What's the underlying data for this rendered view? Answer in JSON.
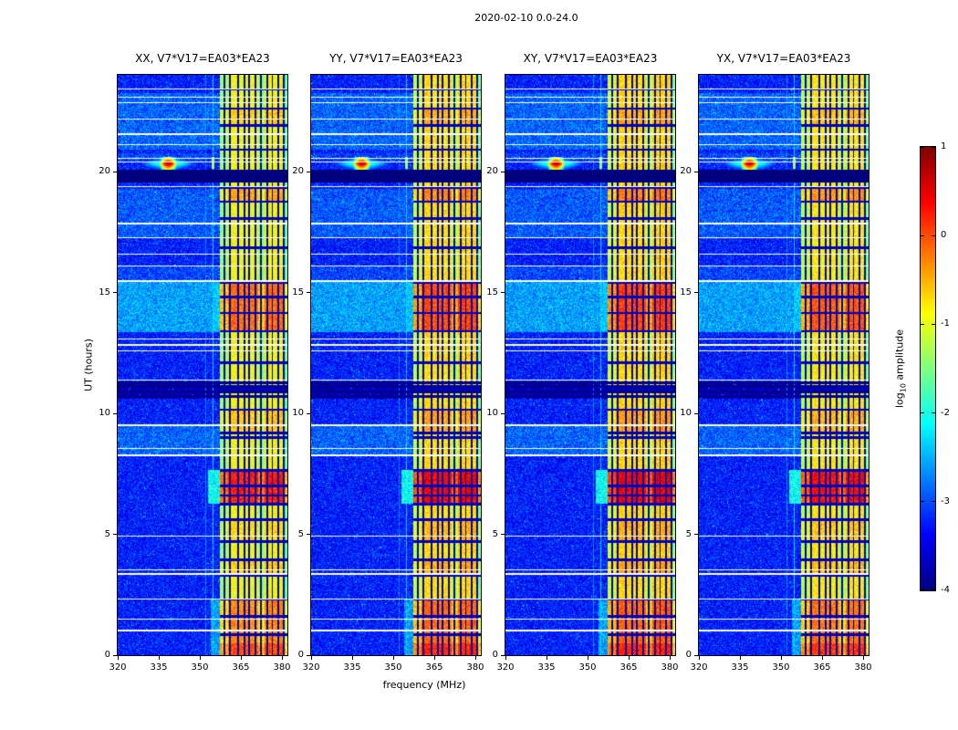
{
  "figure": {
    "title": "2020-02-10 0.0-24.0",
    "xlabel": "frequency (MHz)",
    "ylabel": "UT (hours)",
    "xticks": [
      320,
      335,
      350,
      365,
      380
    ],
    "yticks": [
      0,
      5,
      10,
      15,
      20
    ],
    "panels": [
      {
        "id": "XX",
        "title": "XX, V7*V17=EA03*EA23",
        "seed": 11,
        "band_boost": 0
      },
      {
        "id": "YY",
        "title": "YY, V7*V17=EA03*EA23",
        "seed": 23,
        "band_boost": 0.18
      },
      {
        "id": "XY",
        "title": "XY, V7*V17=EA03*EA23",
        "seed": 37,
        "band_boost": 0.22
      },
      {
        "id": "YX",
        "title": "YX, V7*V17=EA03*EA23",
        "seed": 53,
        "band_boost": 0.1
      }
    ],
    "colorbar": {
      "label_pre": "log",
      "label_sub": "10",
      "label_post": " amplitude",
      "tick_labels": [
        "1",
        "0",
        "-1",
        "-2",
        "-3",
        "-4"
      ],
      "tick_values": [
        1,
        0,
        -1,
        -2,
        -3,
        -4
      ]
    }
  },
  "chart_data": {
    "type": "heatmap",
    "title": "2020-02-10 0.0-24.0",
    "panel_titles": [
      "XX, V7*V17=EA03*EA23",
      "YY, V7*V17=EA03*EA23",
      "XY, V7*V17=EA03*EA23",
      "YX, V7*V17=EA03*EA23"
    ],
    "polarizations": [
      "XX",
      "YY",
      "XY",
      "YX"
    ],
    "correlation": "V7*V17=EA03*EA23",
    "date": "2020-02-10",
    "xlabel": "frequency (MHz)",
    "ylabel": "UT (hours)",
    "colorbar_label": "log10 amplitude",
    "x_range_mhz": [
      320,
      382
    ],
    "y_range_hours": [
      0,
      24
    ],
    "value_range_log10": [
      -4,
      1
    ],
    "colormap": "jet",
    "background_level": -3.25,
    "background_noise": 0.4,
    "speckle_fraction": 0.04,
    "speckle_boost": 1.0,
    "time_background_offsets": [
      {
        "t0": 8.25,
        "t1": 9.55,
        "dv": 0.35
      },
      {
        "t0": 10.6,
        "t1": 11.3,
        "dv": -0.5
      },
      {
        "t0": 13.35,
        "t1": 15.45,
        "dv": 0.65
      },
      {
        "t0": 15.45,
        "t1": 16.1,
        "dv": 0.2
      },
      {
        "t0": 17.3,
        "t1": 19.3,
        "dv": 0.3
      },
      {
        "t0": 20.45,
        "t1": 20.75,
        "dv": 0.2
      },
      {
        "t0": 20.9,
        "t1": 23.25,
        "dv": 0.35
      }
    ],
    "faint_vertical_lines": [
      {
        "f": 352.2,
        "halfwidth": 0.25,
        "level": -2.75
      },
      {
        "f": 354.8,
        "halfwidth": 0.3,
        "level": -2.35
      }
    ],
    "band_spill": [
      {
        "f0": 353,
        "f1": 357.5,
        "t0": 6.25,
        "t1": 7.65,
        "level": -2.1
      },
      {
        "f0": 355,
        "f1": 357.5,
        "t0": 13.4,
        "t1": 15.4,
        "level": -2.5
      },
      {
        "f0": 354,
        "f1": 357.5,
        "t0": 0.0,
        "t1": 2.3,
        "level": -2.6
      }
    ],
    "rfi_band": {
      "f0": 357.5,
      "base_level": -0.95,
      "noise": 0.3,
      "strong_intervals": [
        {
          "t0": 0.0,
          "t1": 0.5,
          "dv": 0.9
        },
        {
          "t0": 0.5,
          "t1": 2.3,
          "dv": 0.6
        },
        {
          "t0": 3.3,
          "t1": 4.0,
          "dv": 0.25
        },
        {
          "t0": 4.7,
          "t1": 5.6,
          "dv": 0.2
        },
        {
          "t0": 6.25,
          "t1": 7.65,
          "dv": 1.15
        },
        {
          "t0": 9.2,
          "t1": 10.1,
          "dv": 0.3
        },
        {
          "t0": 13.4,
          "t1": 15.4,
          "dv": 0.75
        },
        {
          "t0": 18.75,
          "t1": 19.35,
          "dv": 0.45
        },
        {
          "t0": 21.9,
          "t1": 22.6,
          "dv": 0.25
        }
      ],
      "freq_profile": [
        {
          "f0": 357.5,
          "f1": 360.5,
          "dv": -0.4
        },
        {
          "f0": 360.5,
          "f1": 364.8,
          "dv": 0.05
        },
        {
          "f0": 364.8,
          "f1": 371.2,
          "dv": 0.0
        },
        {
          "f0": 371.2,
          "f1": 373.6,
          "dv": -0.45
        },
        {
          "f0": 373.6,
          "f1": 380.6,
          "dv": 0.05
        },
        {
          "f0": 380.6,
          "f1": 382,
          "dv": -0.7
        }
      ],
      "dark_freq_lines": [
        358.9,
        361.0,
        363.9,
        366.3,
        368.1,
        370.4,
        372.2,
        374.6,
        376.5,
        378.7,
        380.7
      ],
      "dark_time_lines": [
        0.85,
        1.6,
        2.3,
        3.3,
        3.95,
        4.7,
        5.6,
        6.25,
        6.6,
        7.0,
        7.65,
        9.0,
        9.2,
        10.15,
        11.0,
        12.1,
        13.4,
        14.15,
        14.8,
        15.4,
        16.85,
        18.05,
        18.75,
        19.35,
        20.9,
        21.9,
        22.6,
        23.4
      ]
    },
    "white_dropouts": [
      [
        1.05,
        2
      ],
      [
        1.5,
        1
      ],
      [
        2.35,
        1
      ],
      [
        3.4,
        2
      ],
      [
        3.55,
        1
      ],
      [
        4.95,
        1
      ],
      [
        8.3,
        2
      ],
      [
        8.55,
        1
      ],
      [
        9.55,
        2
      ],
      [
        11.4,
        1
      ],
      [
        12.6,
        1
      ],
      [
        12.85,
        2
      ],
      [
        13.1,
        1
      ],
      [
        15.5,
        2
      ],
      [
        16.1,
        1
      ],
      [
        16.6,
        1
      ],
      [
        17.3,
        1
      ],
      [
        17.9,
        2
      ],
      [
        19.4,
        1
      ],
      [
        20.4,
        1
      ],
      [
        20.55,
        1
      ],
      [
        21.15,
        1
      ],
      [
        21.6,
        2
      ],
      [
        22.2,
        1
      ],
      [
        22.85,
        1
      ],
      [
        23.1,
        1
      ],
      [
        23.45,
        1
      ]
    ],
    "dark_rows_times": [
      10.7,
      10.9,
      11.1,
      11.25
    ],
    "black_band": {
      "t0": 19.55,
      "t1": 20.08
    },
    "flare": {
      "t_center": 20.32,
      "t_halfwidth": 0.3,
      "f_center_mhz": 338.5,
      "core_sigma_mhz": 2.4,
      "halo_sigma_mhz": 8.5,
      "peak_level": 0.8,
      "halo_level": -1.7
    },
    "narrow_spike": {
      "t0": 20.1,
      "t1": 20.6,
      "f_mhz": 354.8,
      "halfwidth": 0.45,
      "level": -1.3
    }
  }
}
